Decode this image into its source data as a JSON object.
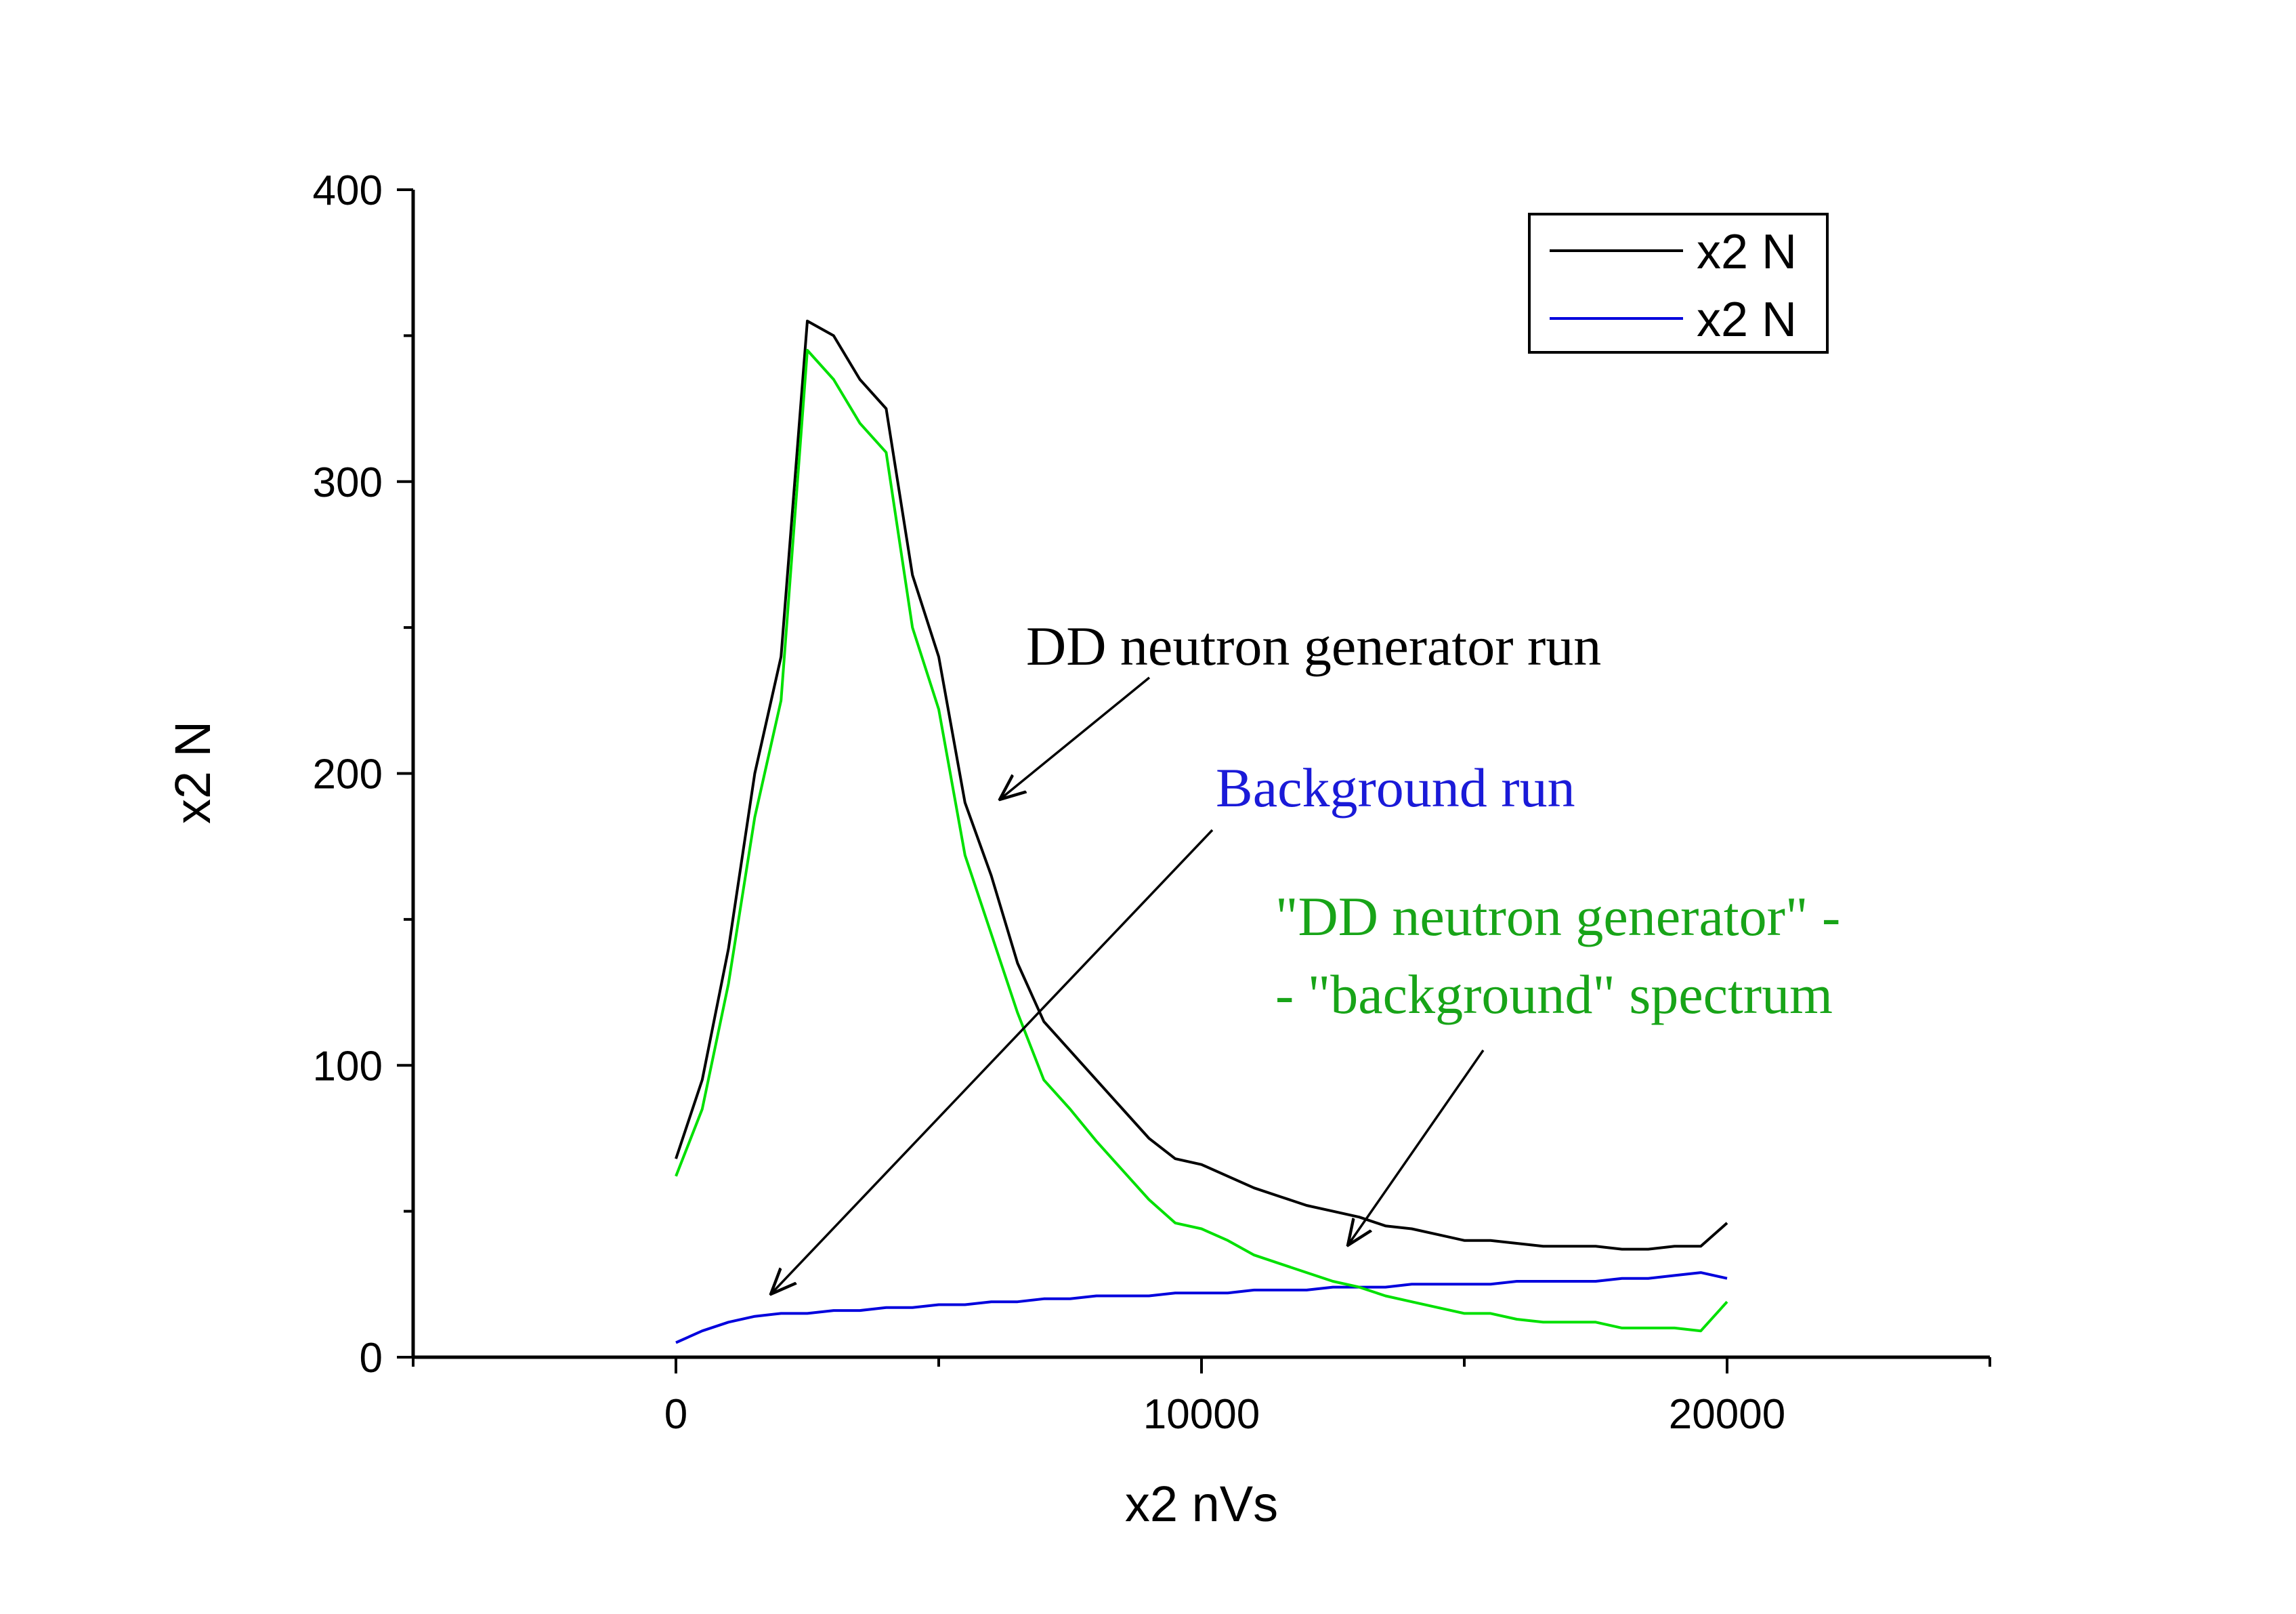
{
  "chart_data": {
    "type": "line",
    "xlabel": "x2 nVs",
    "ylabel": "x2 N",
    "xlim": [
      -5000,
      25000
    ],
    "ylim": [
      0,
      400
    ],
    "x_ticks": [
      0,
      10000,
      20000
    ],
    "y_ticks": [
      0,
      100,
      200,
      300,
      400
    ],
    "x_tick_labels": [
      "0",
      "10000",
      "20000"
    ],
    "y_tick_labels": [
      "0",
      "100",
      "200",
      "300",
      "400"
    ],
    "grid": false,
    "legend_position": "top-right",
    "legend": [
      {
        "label": "x2 N",
        "color": "#000000"
      },
      {
        "label": "x2 N",
        "color": "#0000dd"
      }
    ],
    "series": [
      {
        "name": "x2 N",
        "color": "#000000",
        "x": [
          0,
          500,
          1000,
          1500,
          2000,
          2500,
          3000,
          3500,
          4000,
          4500,
          5000,
          5500,
          6000,
          6500,
          7000,
          7500,
          8000,
          8500,
          9000,
          9500,
          10000,
          10500,
          11000,
          11500,
          12000,
          12500,
          13000,
          13500,
          14000,
          14500,
          15000,
          15500,
          16000,
          16500,
          17000,
          17500,
          18000,
          18500,
          19000,
          19500,
          20000
        ],
        "y": [
          68,
          95,
          140,
          200,
          240,
          355,
          350,
          335,
          325,
          268,
          240,
          190,
          165,
          135,
          115,
          105,
          95,
          85,
          75,
          68,
          66,
          62,
          58,
          55,
          52,
          50,
          48,
          45,
          44,
          42,
          40,
          40,
          39,
          38,
          38,
          38,
          37,
          37,
          38,
          38,
          46
        ]
      },
      {
        "name": "x2 N",
        "color": "#0000dd",
        "x": [
          0,
          500,
          1000,
          1500,
          2000,
          2500,
          3000,
          3500,
          4000,
          4500,
          5000,
          5500,
          6000,
          6500,
          7000,
          7500,
          8000,
          8500,
          9000,
          9500,
          10000,
          10500,
          11000,
          11500,
          12000,
          12500,
          13000,
          13500,
          14000,
          14500,
          15000,
          15500,
          16000,
          16500,
          17000,
          17500,
          18000,
          18500,
          19000,
          19500,
          20000
        ],
        "y": [
          5,
          9,
          12,
          14,
          15,
          15,
          16,
          16,
          17,
          17,
          18,
          18,
          19,
          19,
          20,
          20,
          21,
          21,
          21,
          22,
          22,
          22,
          23,
          23,
          23,
          24,
          24,
          24,
          25,
          25,
          25,
          25,
          26,
          26,
          26,
          26,
          27,
          27,
          28,
          29,
          27
        ]
      },
      {
        "name": "",
        "color": "#00e000",
        "x": [
          0,
          500,
          1000,
          1500,
          2000,
          2500,
          3000,
          3500,
          4000,
          4500,
          5000,
          5500,
          6000,
          6500,
          7000,
          7500,
          8000,
          8500,
          9000,
          9500,
          10000,
          10500,
          11000,
          11500,
          12000,
          12500,
          13000,
          13500,
          14000,
          14500,
          15000,
          15500,
          16000,
          16500,
          17000,
          17500,
          18000,
          18500,
          19000,
          19500,
          20000
        ],
        "y": [
          62,
          85,
          128,
          185,
          225,
          345,
          335,
          320,
          310,
          250,
          222,
          172,
          145,
          118,
          95,
          85,
          74,
          64,
          54,
          46,
          44,
          40,
          35,
          32,
          29,
          26,
          24,
          21,
          19,
          17,
          15,
          15,
          13,
          12,
          12,
          12,
          10,
          10,
          10,
          9,
          19
        ]
      }
    ],
    "annotations": {
      "dd_run": {
        "text": "DD neutron generator run",
        "color": "#000000",
        "arrow_to": [
          6000,
          190
        ]
      },
      "background": {
        "text": "Background run",
        "color": "#1a1ad8",
        "arrow_to": [
          1700,
          22
        ]
      },
      "difference_line1": {
        "text": "\"DD neutron generator\" -",
        "color": "#18a418"
      },
      "difference_line2": {
        "text": "- \"background\" spectrum",
        "color": "#18a418",
        "arrow_to": [
          12500,
          38
        ]
      }
    }
  }
}
